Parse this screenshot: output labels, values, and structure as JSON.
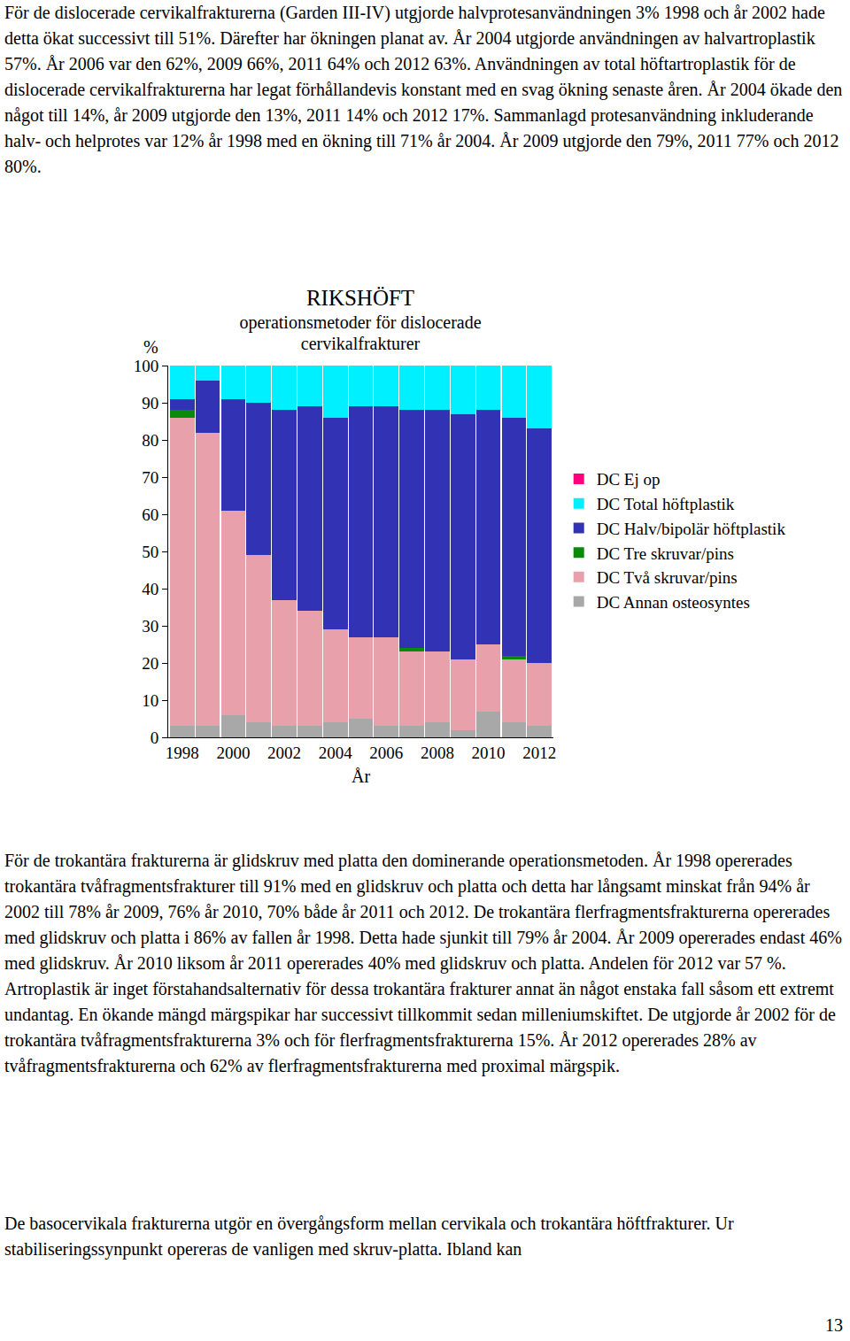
{
  "paragraphs_top": [
    "För de dislocerade cervikalfrakturerna (Garden III-IV) utgjorde halvprotesanvändningen 3% 1998 och år 2002 hade detta ökat successivt till 51%. Därefter har ökningen planat av. År 2004 utgjorde användningen av halvartroplastik 57%. År 2006 var den 62%, 2009 66%, 2011 64% och 2012 63%. Användningen av total höftartroplastik för de dislocerade cervikalfrakturerna har legat förhållandevis konstant med en svag ökning senaste åren. År 2004 ökade den något till 14%, år 2009 utgjorde den 13%, 2011 14% och 2012 17%. Sammanlagd protesanvändning inkluderande halv- och helprotes var 12% år 1998 med en ökning till 71% år 2004. År 2009 utgjorde den 79%, 2011 77% och 2012 80%."
  ],
  "chart_data": {
    "type": "bar",
    "stacked": true,
    "title": "RIKSHÖFT",
    "subtitle": "operationsmetoder för dislocerade cervikalfrakturer",
    "y_label": "%",
    "x_label": "År",
    "x": [
      1998,
      1999,
      2000,
      2001,
      2002,
      2003,
      2004,
      2005,
      2006,
      2007,
      2008,
      2009,
      2010,
      2011,
      2012
    ],
    "xlim": [
      1997.45,
      2012.55
    ],
    "xticks": [
      1998,
      2000,
      2002,
      2004,
      2006,
      2008,
      2010,
      2012
    ],
    "ylim": [
      0,
      100
    ],
    "yticks": [
      0,
      10,
      20,
      30,
      40,
      50,
      60,
      70,
      80,
      90,
      100
    ],
    "grid": false,
    "legend": "right",
    "series": [
      {
        "name": "DC Annan osteosyntes",
        "color": "#a8a8a8",
        "values": [
          3,
          3,
          6,
          4,
          3,
          3,
          4,
          5,
          3,
          3,
          4,
          2,
          7,
          4,
          3
        ]
      },
      {
        "name": "DC Två skruvar/pins",
        "color": "#e8a0aa",
        "values": [
          83,
          79,
          55,
          45,
          34,
          31,
          25,
          22,
          24,
          20,
          19,
          19,
          18,
          17,
          17
        ]
      },
      {
        "name": "DC Tre skruvar/pins",
        "color": "#0a8a0a",
        "values": [
          2,
          0,
          0,
          0,
          0,
          0,
          0,
          0,
          0,
          1,
          0,
          0,
          0,
          1,
          0
        ]
      },
      {
        "name": "DC Halv/bipolär höftplastik",
        "color": "#3232b4",
        "values": [
          3,
          14,
          30,
          41,
          51,
          55,
          57,
          62,
          62,
          64,
          65,
          66,
          63,
          64,
          63
        ]
      },
      {
        "name": "DC Total höftplastik",
        "color": "#00f0ff",
        "values": [
          9,
          4,
          9,
          10,
          12,
          11,
          14,
          11,
          11,
          12,
          12,
          13,
          12,
          14,
          17
        ]
      },
      {
        "name": "DC Ej op",
        "color": "#ff007f",
        "values": [
          0,
          0,
          0,
          0,
          0,
          0,
          0,
          0,
          0,
          0,
          0,
          0,
          0,
          0,
          0
        ]
      }
    ]
  },
  "paragraphs_bottom": [
    "För de trokantära frakturerna är glidskruv med platta den dominerande operationsmetoden. År 1998 opererades trokantära tvåfragmentsfrakturer till 91% med en glidskruv och platta och detta har långsamt minskat från 94% år 2002 till 78% år 2009, 76% år 2010, 70% både år 2011 och 2012. De trokantära flerfragmentsfrakturerna opererades med glidskruv och platta i 86% av fallen år 1998. Detta hade sjunkit till 79% år 2004. År 2009 opererades endast 46% med glidskruv. År 2010 liksom år 2011 opererades 40% med glidskruv och platta. Andelen för 2012 var 57 %. Artroplastik är inget förstahandsalternativ för dessa trokantära frakturer annat än något enstaka fall såsom ett extremt undantag. En ökande mängd märgspikar har successivt tillkommit sedan milleniumskiftet. De utgjorde år 2002 för de trokantära tvåfragmentsfrakturerna 3% och för flerfragmentsfrakturerna 15%. År 2012 opererades 28% av tvåfragmentsfrakturerna och 62% av flerfragmentsfrakturerna med proximal märgspik.",
    "De basocervikala frakturerna utgör en övergångsform mellan cervikala och trokantära höftfrakturer. Ur stabiliseringssynpunkt opereras de vanligen med skruv-platta. Ibland kan"
  ],
  "page_number": "13"
}
